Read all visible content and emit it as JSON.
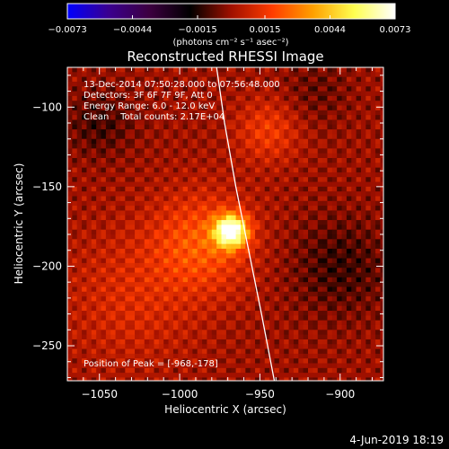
{
  "chart_data": {
    "type": "heatmap",
    "title": "Reconstructed RHESSI Image",
    "xlabel": "Heliocentric X (arcsec)",
    "ylabel": "Heliocentric Y (arcsec)",
    "xlim": [
      -1070,
      -873
    ],
    "ylim": [
      -272,
      -75
    ],
    "x_ticks": [
      -1050,
      -1000,
      -950,
      -900
    ],
    "x_tick_labels": [
      "−1050",
      "−1000",
      "−950",
      "−900"
    ],
    "y_ticks": [
      -100,
      -150,
      -200,
      -250
    ],
    "y_tick_labels": [
      "−100",
      "−150",
      "−200",
      "−250"
    ],
    "colorbar": {
      "min": -0.0073,
      "max": 0.0073,
      "ticks": [
        -0.0073,
        -0.0044,
        -0.0015,
        0.0015,
        0.0044,
        0.0073
      ],
      "tick_labels": [
        "−0.0073",
        "−0.0044",
        "−0.0015",
        "0.0015",
        "0.0044",
        "0.0073"
      ],
      "units_label": "(photons cm⁻² s⁻¹ asec⁻²)",
      "colormap": [
        "#0000ff",
        "#3a0090",
        "#3c0040",
        "#000000",
        "#a01000",
        "#ff3c00",
        "#ffa000",
        "#ffff50",
        "#ffffff"
      ]
    },
    "info_lines": [
      "13-Dec-2014 07:50:28.000 to 07:56:48.000",
      "Detectors: 3F 6F 7F 9F, Att 0",
      "Energy Range: 6.0 - 12.0 keV",
      "Clean    Total counts: 2.17E+04"
    ],
    "peak": {
      "x": -968,
      "y": -178,
      "label": "Position of Peak = [-968,-178]"
    },
    "limb": [
      [
        -977,
        -75
      ],
      [
        -972,
        -110
      ],
      [
        -965,
        -150
      ],
      [
        -957,
        -190
      ],
      [
        -949,
        -230
      ],
      [
        -941,
        -272
      ]
    ],
    "sources": [
      {
        "x": -968,
        "y": -178,
        "sigma": 7,
        "amplitude": 0.0073
      },
      {
        "x": -985,
        "y": -185,
        "sigma": 22,
        "amplitude": 0.0022
      },
      {
        "x": -945,
        "y": -115,
        "sigma": 14,
        "amplitude": 0.0016
      },
      {
        "x": -1030,
        "y": -220,
        "sigma": 30,
        "amplitude": 0.0011
      },
      {
        "x": -1050,
        "y": -110,
        "sigma": 15,
        "amplitude": -0.0011
      },
      {
        "x": -900,
        "y": -200,
        "sigma": 22,
        "amplitude": -0.0012
      },
      {
        "x": -915,
        "y": -90,
        "sigma": 15,
        "amplitude": -0.0007
      }
    ]
  },
  "footer_date": "4-Jun-2019 18:19"
}
